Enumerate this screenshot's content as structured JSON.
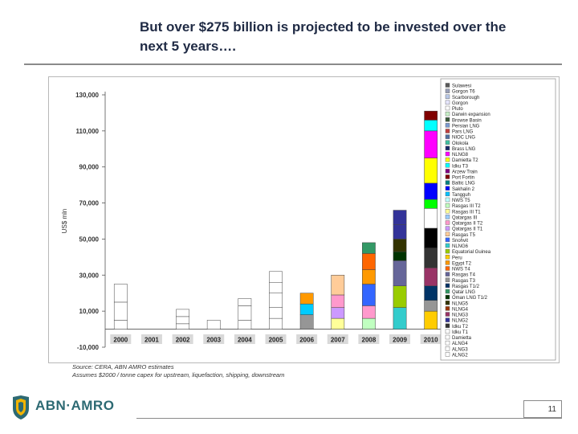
{
  "slide": {
    "title_line1": "But over $275 billion is projected to be invested over the",
    "title_line2": "next 5 years….",
    "source_line1": "Source: CERA, ABN AMRO estimates",
    "source_line2": "Assumes $2000 / tonne capex for upstream, liquefaction, shipping, downstream",
    "logo_text": "ABN·AMRO",
    "page_number": "11"
  },
  "chart_data": {
    "type": "bar",
    "stacked": true,
    "title": "",
    "xlabel": "",
    "ylabel": "US$ mln",
    "ylim": [
      -10000,
      130000
    ],
    "yticks": [
      -10000,
      10000,
      30000,
      50000,
      70000,
      90000,
      110000,
      130000
    ],
    "ytick_labels": [
      "-10,000",
      "10,000",
      "30,000",
      "50,000",
      "70,000",
      "90,000",
      "110,000",
      "130,000"
    ],
    "categories": [
      "2000",
      "2001",
      "2002",
      "2003",
      "2004",
      "2005",
      "2006",
      "2007",
      "2008",
      "2009",
      "2010"
    ],
    "legend_position": "right",
    "series": [
      {
        "name": "Sulawesi",
        "color": "#5a5a5a",
        "values": [
          0,
          0,
          0,
          0,
          0,
          0,
          0,
          0,
          0,
          0,
          0
        ]
      },
      {
        "name": "Gorgon T6",
        "color": "#9aa0b8",
        "values": [
          0,
          0,
          0,
          0,
          0,
          0,
          0,
          0,
          0,
          0,
          0
        ]
      },
      {
        "name": "Scarborough",
        "color": "#b8c8e8",
        "values": [
          0,
          0,
          0,
          0,
          0,
          0,
          0,
          0,
          0,
          0,
          0
        ]
      },
      {
        "name": "Gorgon",
        "color": "#e8e8ff",
        "values": [
          0,
          0,
          0,
          0,
          0,
          0,
          0,
          0,
          0,
          0,
          0
        ]
      },
      {
        "name": "Pluto",
        "color": "#ffffff",
        "values": [
          0,
          0,
          0,
          0,
          0,
          0,
          0,
          0,
          0,
          0,
          0
        ]
      },
      {
        "name": "Darwin expansion",
        "color": "#c8f0c8",
        "values": [
          0,
          0,
          0,
          0,
          0,
          0,
          0,
          0,
          0,
          0,
          0
        ]
      },
      {
        "name": "Browse Basin",
        "color": "#3a5a3a",
        "values": [
          0,
          0,
          0,
          0,
          0,
          0,
          0,
          0,
          0,
          0,
          0
        ]
      },
      {
        "name": "Persian LNG",
        "color": "#7a9ad0",
        "values": [
          0,
          0,
          0,
          0,
          0,
          0,
          0,
          0,
          0,
          0,
          0
        ]
      },
      {
        "name": "Pars LNG",
        "color": "#c04040",
        "values": [
          0,
          0,
          0,
          0,
          0,
          0,
          0,
          0,
          0,
          0,
          0
        ]
      },
      {
        "name": "NIOC LNG",
        "color": "#5070a0",
        "values": [
          0,
          0,
          0,
          0,
          0,
          0,
          0,
          0,
          0,
          0,
          0
        ]
      },
      {
        "name": "Olokola",
        "color": "#40c0a0",
        "values": [
          0,
          0,
          0,
          0,
          0,
          0,
          0,
          0,
          0,
          0,
          0
        ]
      },
      {
        "name": "Brass LNG",
        "color": "#1a2a6a",
        "values": [
          0,
          0,
          0,
          0,
          0,
          0,
          0,
          0,
          0,
          0,
          0
        ]
      },
      {
        "name": "NLNG8",
        "color": "#ff00ff",
        "values": [
          0,
          0,
          0,
          0,
          0,
          0,
          0,
          0,
          0,
          0,
          0
        ]
      },
      {
        "name": "Damietta T2",
        "color": "#ffff00",
        "values": [
          0,
          0,
          0,
          0,
          0,
          0,
          0,
          0,
          0,
          0,
          0
        ]
      },
      {
        "name": "Idku T3",
        "color": "#00ffff",
        "values": [
          0,
          0,
          0,
          0,
          0,
          0,
          0,
          0,
          0,
          0,
          0
        ]
      },
      {
        "name": "Arzew Train",
        "color": "#800080",
        "values": [
          0,
          0,
          0,
          0,
          0,
          0,
          0,
          0,
          0,
          0,
          0
        ]
      },
      {
        "name": "Port Fortin",
        "color": "#800000",
        "values": [
          0,
          0,
          0,
          0,
          0,
          0,
          0,
          0,
          0,
          0,
          0
        ]
      },
      {
        "name": "Baltic LNG",
        "color": "#008080",
        "values": [
          0,
          0,
          0,
          0,
          0,
          0,
          0,
          0,
          0,
          0,
          0
        ]
      },
      {
        "name": "Sakhalin 2",
        "color": "#0000ff",
        "values": [
          0,
          0,
          0,
          0,
          0,
          0,
          0,
          0,
          0,
          0,
          0
        ]
      },
      {
        "name": "Tangguh",
        "color": "#00c0ff",
        "values": [
          0,
          0,
          0,
          0,
          0,
          0,
          0,
          0,
          0,
          0,
          0
        ]
      },
      {
        "name": "NWS T5",
        "color": "#c0ffff",
        "values": [
          0,
          0,
          0,
          0,
          0,
          0,
          0,
          0,
          0,
          0,
          0
        ]
      },
      {
        "name": "Rasgas III T2",
        "color": "#c0ffc0",
        "values": [
          0,
          0,
          0,
          0,
          0,
          0,
          0,
          0,
          0,
          0,
          0
        ]
      },
      {
        "name": "Rasgas III T1",
        "color": "#ffff99",
        "values": [
          0,
          0,
          0,
          0,
          0,
          0,
          0,
          0,
          0,
          0,
          0
        ]
      },
      {
        "name": "Qatargas III",
        "color": "#99ccff",
        "values": [
          0,
          0,
          0,
          0,
          0,
          0,
          0,
          0,
          0,
          0,
          0
        ]
      },
      {
        "name": "Qatargas II T2",
        "color": "#ff99cc",
        "values": [
          0,
          0,
          0,
          0,
          0,
          0,
          0,
          0,
          0,
          0,
          0
        ]
      },
      {
        "name": "Qatargas II T1",
        "color": "#cc99ff",
        "values": [
          0,
          0,
          0,
          0,
          0,
          0,
          0,
          0,
          0,
          0,
          0
        ]
      },
      {
        "name": "Rasgas T5",
        "color": "#ffcc99",
        "values": [
          0,
          0,
          0,
          0,
          0,
          0,
          0,
          0,
          0,
          0,
          0
        ]
      },
      {
        "name": "Snohvit",
        "color": "#3366ff",
        "values": [
          0,
          0,
          0,
          0,
          0,
          0,
          0,
          0,
          0,
          0,
          0
        ]
      },
      {
        "name": "NLNG6",
        "color": "#33cccc",
        "values": [
          0,
          0,
          0,
          0,
          0,
          0,
          0,
          0,
          0,
          0,
          0
        ]
      },
      {
        "name": "Equatorial Guinea",
        "color": "#99cc00",
        "values": [
          0,
          0,
          0,
          0,
          0,
          0,
          0,
          0,
          0,
          0,
          0
        ]
      },
      {
        "name": "Peru",
        "color": "#ffcc00",
        "values": [
          0,
          0,
          0,
          0,
          0,
          0,
          0,
          0,
          0,
          0,
          0
        ]
      },
      {
        "name": "Egypt T2",
        "color": "#ff9900",
        "values": [
          0,
          0,
          0,
          0,
          0,
          0,
          0,
          0,
          0,
          0,
          0
        ]
      },
      {
        "name": "NWS T4",
        "color": "#ff6600",
        "values": [
          0,
          0,
          0,
          0,
          0,
          0,
          0,
          0,
          0,
          0,
          0
        ]
      },
      {
        "name": "Rasgas T4",
        "color": "#666699",
        "values": [
          0,
          0,
          0,
          0,
          0,
          0,
          0,
          0,
          0,
          0,
          0
        ]
      },
      {
        "name": "Rasgas T3",
        "color": "#969696",
        "values": [
          0,
          0,
          0,
          0,
          0,
          0,
          0,
          0,
          0,
          0,
          0
        ]
      },
      {
        "name": "Rasgas T1/2",
        "color": "#003366",
        "values": [
          0,
          0,
          0,
          0,
          0,
          0,
          0,
          0,
          0,
          0,
          0
        ]
      },
      {
        "name": "Qatar LNG",
        "color": "#339966",
        "values": [
          0,
          0,
          0,
          0,
          0,
          0,
          0,
          0,
          0,
          0,
          0
        ]
      },
      {
        "name": "Oman LNG T1/2",
        "color": "#003300",
        "values": [
          0,
          0,
          0,
          0,
          0,
          0,
          0,
          0,
          0,
          0,
          0
        ]
      },
      {
        "name": "NLNG5",
        "color": "#333300",
        "values": [
          0,
          0,
          0,
          0,
          0,
          0,
          0,
          0,
          0,
          0,
          0
        ]
      },
      {
        "name": "NLNG4",
        "color": "#993300",
        "values": [
          0,
          0,
          0,
          0,
          0,
          0,
          0,
          0,
          0,
          0,
          0
        ]
      },
      {
        "name": "NLNG3",
        "color": "#993366",
        "values": [
          0,
          0,
          0,
          0,
          0,
          0,
          0,
          0,
          0,
          0,
          0
        ]
      },
      {
        "name": "NLNG2",
        "color": "#333399",
        "values": [
          0,
          0,
          0,
          0,
          0,
          0,
          0,
          0,
          0,
          0,
          0
        ]
      },
      {
        "name": "Idku T2",
        "color": "#333333",
        "values": [
          0,
          0,
          0,
          0,
          0,
          0,
          0,
          0,
          0,
          0,
          0
        ]
      },
      {
        "name": "Idku T1",
        "color": "#ffffff",
        "values": [
          0,
          0,
          0,
          0,
          0,
          0,
          0,
          0,
          0,
          0,
          0
        ]
      },
      {
        "name": "Damietta",
        "color": "#ffffff",
        "values": [
          0,
          0,
          0,
          0,
          0,
          0,
          0,
          0,
          0,
          0,
          0
        ]
      },
      {
        "name": "ALNG4",
        "color": "#ffffff",
        "values": [
          0,
          0,
          0,
          0,
          0,
          0,
          0,
          0,
          0,
          0,
          0
        ]
      },
      {
        "name": "ALNG3",
        "color": "#ffffff",
        "values": [
          0,
          0,
          0,
          0,
          0,
          0,
          0,
          0,
          0,
          0,
          0
        ]
      },
      {
        "name": "ALNG2",
        "color": "#ffffff",
        "values": [
          0,
          0,
          0,
          0,
          0,
          0,
          0,
          0,
          0,
          0,
          0
        ]
      }
    ],
    "stacks": [
      [
        [
          0,
          5000,
          "#ffffff"
        ],
        [
          5000,
          15000,
          "#ffffff"
        ],
        [
          15000,
          25000,
          "#ffffff"
        ]
      ],
      [],
      [
        [
          0,
          3000,
          "#ffffff"
        ],
        [
          3000,
          7000,
          "#ffffff"
        ],
        [
          7000,
          11000,
          "#ffffff"
        ]
      ],
      [
        [
          0,
          5000,
          "#ffffff"
        ]
      ],
      [
        [
          0,
          5000,
          "#ffffff"
        ],
        [
          5000,
          13000,
          "#ffffff"
        ],
        [
          13000,
          17000,
          "#ffffff"
        ]
      ],
      [
        [
          0,
          6000,
          "#ffffff"
        ],
        [
          6000,
          12000,
          "#ffffff"
        ],
        [
          12000,
          20000,
          "#ffffff"
        ],
        [
          20000,
          26000,
          "#ffffff"
        ],
        [
          26000,
          32000,
          "#ffffff"
        ]
      ],
      [
        [
          0,
          8000,
          "#969696"
        ],
        [
          8000,
          14000,
          "#00ccff"
        ],
        [
          14000,
          20000,
          "#ff9900"
        ]
      ],
      [
        [
          0,
          6000,
          "#ffff99"
        ],
        [
          6000,
          12000,
          "#cc99ff"
        ],
        [
          12000,
          19000,
          "#ff99cc"
        ],
        [
          19000,
          30000,
          "#ffcc99"
        ]
      ],
      [
        [
          0,
          6000,
          "#c0ffc0"
        ],
        [
          6000,
          13000,
          "#ff99cc"
        ],
        [
          13000,
          25000,
          "#3366ff"
        ],
        [
          25000,
          33000,
          "#ff9900"
        ],
        [
          33000,
          42000,
          "#ff6600"
        ],
        [
          42000,
          48000,
          "#339966"
        ]
      ],
      [
        [
          0,
          12000,
          "#33cccc"
        ],
        [
          12000,
          24000,
          "#99cc00"
        ],
        [
          24000,
          38000,
          "#666699"
        ],
        [
          38000,
          43000,
          "#003300"
        ],
        [
          43000,
          50000,
          "#333300"
        ],
        [
          50000,
          58000,
          "#333399"
        ],
        [
          58000,
          66000,
          "#333399"
        ]
      ],
      [
        [
          0,
          10000,
          "#ffcc00"
        ],
        [
          10000,
          16000,
          "#969696"
        ],
        [
          16000,
          24000,
          "#003366"
        ],
        [
          24000,
          34000,
          "#993366"
        ],
        [
          34000,
          45000,
          "#333333"
        ],
        [
          45000,
          56000,
          "#000000"
        ],
        [
          56000,
          67000,
          "#ffffff"
        ],
        [
          67000,
          72000,
          "#00ff00"
        ],
        [
          72000,
          81000,
          "#0000ff"
        ],
        [
          81000,
          95000,
          "#ffff00"
        ],
        [
          95000,
          110000,
          "#ff00ff"
        ],
        [
          110000,
          116000,
          "#00ffff"
        ],
        [
          116000,
          121000,
          "#800000"
        ]
      ]
    ]
  }
}
